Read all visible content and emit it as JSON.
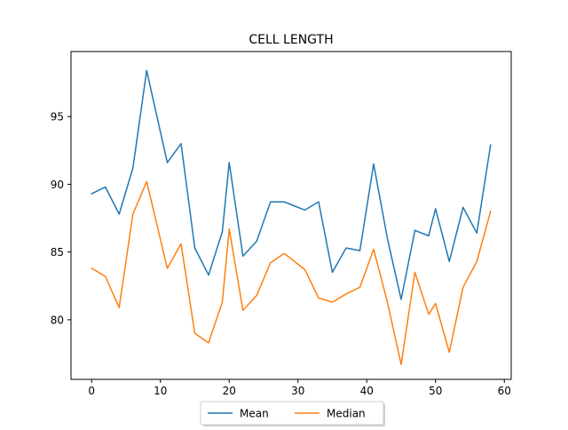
{
  "chart_data": {
    "type": "line",
    "title": "CELL LENGTH",
    "xlabel": "",
    "ylabel": "",
    "xlim": [
      -3,
      61
    ],
    "ylim": [
      75.6,
      99.8
    ],
    "xticks": [
      0,
      10,
      20,
      30,
      40,
      50,
      60
    ],
    "yticks": [
      80,
      85,
      90,
      95
    ],
    "grid": false,
    "legend": {
      "placement": "bottom-center",
      "columns": 2
    },
    "series": [
      {
        "name": "Mean",
        "color": "#1f77b4",
        "x": [
          0,
          2,
          4,
          6,
          8,
          11,
          13,
          15,
          17,
          19,
          20,
          22,
          24,
          26,
          28,
          31,
          33,
          35,
          37,
          39,
          41,
          43,
          45,
          47,
          49,
          50,
          52,
          54,
          56,
          58
        ],
        "values": [
          89.3,
          89.8,
          87.8,
          91.2,
          98.4,
          91.6,
          93.0,
          85.3,
          83.3,
          86.5,
          91.6,
          84.7,
          85.8,
          88.7,
          88.7,
          88.1,
          88.7,
          83.5,
          85.3,
          85.1,
          91.5,
          86.0,
          81.5,
          86.6,
          86.2,
          88.2,
          84.3,
          88.3,
          86.4,
          92.9
        ]
      },
      {
        "name": "Median",
        "color": "#ff7f0e",
        "x": [
          0,
          2,
          4,
          6,
          8,
          11,
          13,
          15,
          17,
          19,
          20,
          22,
          24,
          26,
          28,
          31,
          33,
          35,
          37,
          39,
          41,
          43,
          45,
          47,
          49,
          50,
          52,
          54,
          56,
          58
        ],
        "values": [
          83.8,
          83.2,
          80.9,
          87.8,
          90.2,
          83.8,
          85.6,
          79.0,
          78.3,
          81.3,
          86.7,
          80.7,
          81.8,
          84.2,
          84.9,
          83.7,
          81.6,
          81.3,
          81.9,
          82.4,
          85.2,
          81.3,
          76.7,
          83.5,
          80.4,
          81.2,
          77.6,
          82.4,
          84.3,
          88.0
        ]
      }
    ]
  }
}
